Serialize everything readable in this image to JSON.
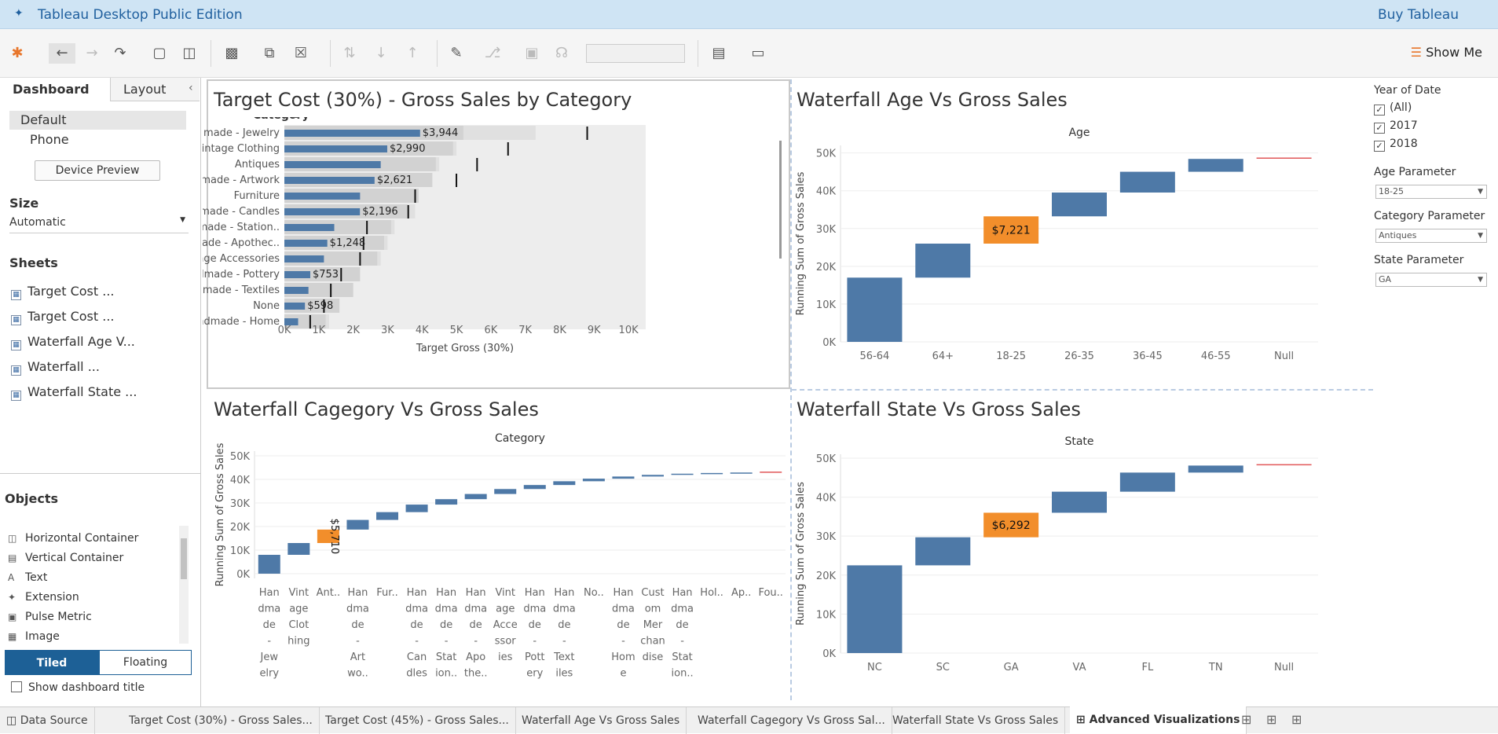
{
  "app": {
    "title": "Tableau Desktop Public Edition",
    "buy": "Buy Tableau"
  },
  "toolbar": {
    "show_me": "Show Me"
  },
  "left": {
    "tabs": [
      "Dashboard",
      "Layout"
    ],
    "device_options": [
      "Default",
      "Phone"
    ],
    "device_preview": "Device Preview",
    "size_label": "Size",
    "size_value": "Automatic",
    "sheets_label": "Sheets",
    "sheets": [
      "Target Cost ...",
      "Target Cost ...",
      "Waterfall Age V...",
      "Waterfall ...",
      "Waterfall State ..."
    ],
    "objects_label": "Objects",
    "objects": [
      "Horizontal Container",
      "Vertical Container",
      "Text",
      "Extension",
      "Pulse Metric",
      "Image"
    ],
    "tiled": "Tiled",
    "floating": "Floating",
    "show_title": "Show dashboard title"
  },
  "filters": {
    "year_title": "Year of Date",
    "year_options": [
      "(All)",
      "2017",
      "2018"
    ],
    "age_title": "Age Parameter",
    "age_value": "18-25",
    "category_title": "Category Parameter",
    "category_value": "Antiques",
    "state_title": "State Parameter",
    "state_value": "GA"
  },
  "bottom_tabs": {
    "data_source": "Data Source",
    "sheets": [
      "Target Cost (30%) - Gross Sales...",
      "Target Cost (45%) - Gross Sales...",
      "Waterfall Age Vs Gross Sales",
      "Waterfall Cagegory Vs Gross Sal...",
      "Waterfall State Vs Gross Sales"
    ],
    "active": "Advanced Visualizations"
  },
  "chart_data": [
    {
      "type": "bar",
      "title": "Target Cost (30%) - Gross Sales by Category",
      "header": "Category",
      "xlabel": "Target Gross (30%)",
      "xlim": [
        0,
        10500
      ],
      "xticks": [
        "0K",
        "1K",
        "2K",
        "3K",
        "4K",
        "5K",
        "6K",
        "7K",
        "8K",
        "9K",
        "10K"
      ],
      "categories": [
        "Handmade - Jewelry",
        "Vintage Clothing",
        "Antiques",
        "Handmade - Artwork",
        "Furniture",
        "Handmade - Candles",
        "Handmade - Station..",
        "Handmade - Apothec..",
        "Vintage Accessories",
        "Handmade - Pottery",
        "Handmade - Textiles",
        "None",
        "Handmade - Home"
      ],
      "values": [
        3944,
        2990,
        2800,
        2621,
        2200,
        2196,
        1450,
        1248,
        1150,
        753,
        700,
        598,
        400
      ],
      "labels": [
        "$3,944",
        "$2,990",
        "",
        "$2,621",
        "",
        "$2,196",
        "",
        "$1,248",
        "",
        "$753",
        "",
        "$598",
        ""
      ],
      "band1": [
        5200,
        4900,
        4400,
        4300,
        3900,
        3600,
        3100,
        2900,
        2700,
        2200,
        2000,
        1600,
        1200
      ],
      "band2": [
        7300,
        5000,
        4500,
        4300,
        3900,
        3800,
        3200,
        3000,
        2800,
        2200,
        2000,
        1600,
        1300
      ],
      "targets": [
        8800,
        6500,
        5600,
        5000,
        3800,
        3600,
        2400,
        2300,
        2200,
        1650,
        1350,
        1150,
        750
      ]
    },
    {
      "type": "waterfall",
      "title": "Waterfall Age Vs Gross Sales",
      "header": "Age",
      "ylabel": "Running Sum of Gross Sales",
      "ylim": [
        0,
        52000
      ],
      "yticks": [
        "0K",
        "10K",
        "20K",
        "30K",
        "40K",
        "50K"
      ],
      "categories": [
        "56-64",
        "64+",
        "18-25",
        "26-35",
        "36-45",
        "46-55",
        "Null"
      ],
      "values": [
        17000,
        9000,
        7221,
        6300,
        5500,
        3400,
        200
      ],
      "highlight_index": 2,
      "highlight_label": "$7,221"
    },
    {
      "type": "waterfall",
      "title": "Waterfall Cagegory Vs Gross Sales",
      "header": "Category",
      "ylabel": "Running Sum of Gross Sales",
      "ylim": [
        -2000,
        52000
      ],
      "yticks": [
        "0K",
        "10K",
        "20K",
        "30K",
        "40K",
        "50K"
      ],
      "categories": [
        "Han dma de - Jew elry",
        "Vint age Clot hing",
        "Ant..",
        "Han dma de - Art wo..",
        "Fur..",
        "Han dma de - Can dles",
        "Han dma de - Stat ion..",
        "Han dma de - Apo the..",
        "Vint age Acce ssor ies",
        "Han dma de - Pott ery",
        "Han dma de - Text iles",
        "No..",
        "Han dma de - Hom e",
        "Cust om Mer chan dise",
        "Han dma de - Stat ion..",
        "Hol..",
        "Ap..",
        "Fou.."
      ],
      "values": [
        8000,
        5000,
        5710,
        4100,
        3300,
        3200,
        2300,
        2200,
        2100,
        1700,
        1600,
        1100,
        900,
        700,
        500,
        300,
        200,
        150
      ],
      "highlight_index": 2,
      "highlight_label": "$5,710"
    },
    {
      "type": "waterfall",
      "title": "Waterfall State Vs Gross Sales",
      "header": "State",
      "ylabel": "Running Sum of Gross Sales",
      "ylim": [
        0,
        51000
      ],
      "yticks": [
        "0K",
        "10K",
        "20K",
        "30K",
        "40K",
        "50K"
      ],
      "categories": [
        "NC",
        "SC",
        "GA",
        "VA",
        "FL",
        "TN",
        "Null"
      ],
      "values": [
        22500,
        7200,
        6292,
        5400,
        4900,
        1800,
        200
      ],
      "highlight_index": 2,
      "highlight_label": "$6,292"
    }
  ]
}
